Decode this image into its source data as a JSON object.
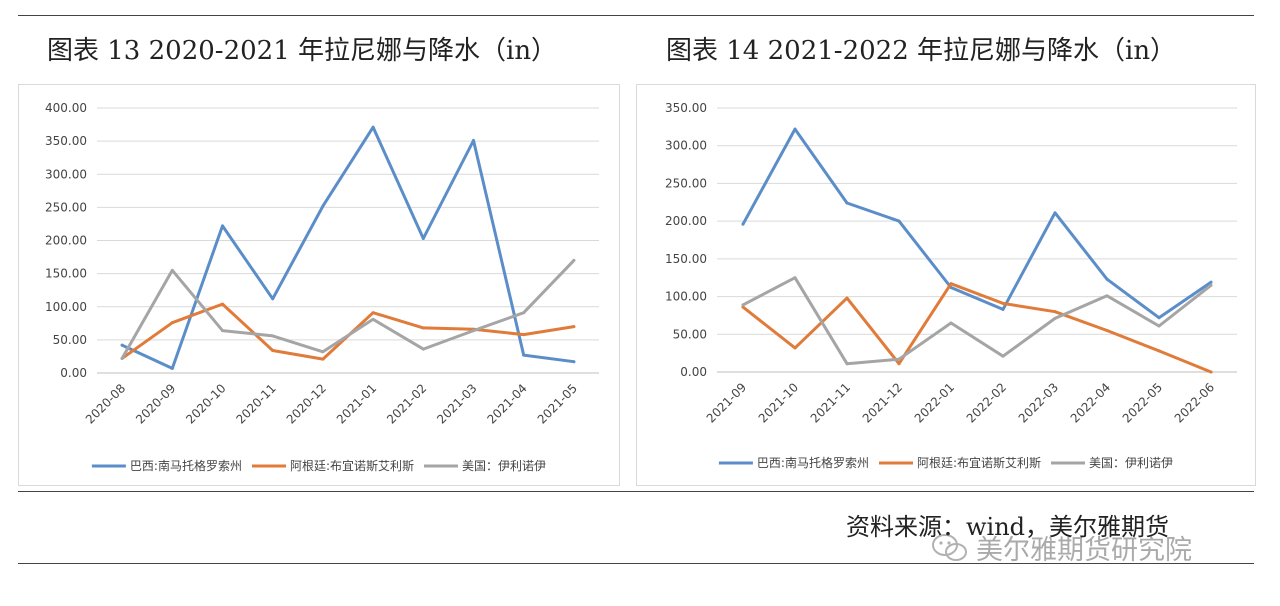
{
  "left": {
    "figure_title": "图表 13 2020-2021 年拉尼娜与降水（in）",
    "chart_data": {
      "type": "line",
      "categories": [
        "2020-08",
        "2020-09",
        "2020-10",
        "2020-11",
        "2020-12",
        "2021-01",
        "2021-02",
        "2021-03",
        "2021-04",
        "2021-05"
      ],
      "ylim": [
        0,
        400
      ],
      "yticks": [
        "0.00",
        "50.00",
        "100.00",
        "150.00",
        "200.00",
        "250.00",
        "300.00",
        "350.00",
        "400.00"
      ],
      "grid": "horizontal",
      "legend_position": "bottom",
      "series": [
        {
          "name": "巴西:南马托格罗索州",
          "color": "#5b8ec9",
          "values": [
            42,
            7,
            222,
            112,
            252,
            371,
            203,
            351,
            27,
            17
          ]
        },
        {
          "name": "阿根廷:布宜诺斯艾利斯",
          "color": "#e07b39",
          "values": [
            22,
            76,
            104,
            34,
            21,
            91,
            68,
            66,
            58,
            70
          ]
        },
        {
          "name": "美国：伊利诺伊",
          "color": "#a5a5a5",
          "values": [
            22,
            155,
            64,
            56,
            32,
            81,
            36,
            64,
            91,
            170
          ]
        }
      ]
    }
  },
  "right": {
    "figure_title": "图表 14 2021-2022 年拉尼娜与降水（in）",
    "chart_data": {
      "type": "line",
      "categories": [
        "2021-09",
        "2021-10",
        "2021-11",
        "2021-12",
        "2022-01",
        "2022-02",
        "2022-03",
        "2022-04",
        "2022-05",
        "2022-06"
      ],
      "ylim": [
        0,
        350
      ],
      "yticks": [
        "0.00",
        "50.00",
        "100.00",
        "150.00",
        "200.00",
        "250.00",
        "300.00",
        "350.00"
      ],
      "grid": "horizontal",
      "legend_position": "bottom",
      "series": [
        {
          "name": "巴西:南马托格罗索州",
          "color": "#5b8ec9",
          "values": [
            196,
            322,
            224,
            200,
            112,
            83,
            211,
            123,
            72,
            119
          ]
        },
        {
          "name": "阿根廷:布宜诺斯艾利斯",
          "color": "#e07b39",
          "values": [
            86,
            32,
            98,
            11,
            117,
            91,
            80,
            55,
            28,
            0
          ]
        },
        {
          "name": "美国：伊利诺伊",
          "color": "#a5a5a5",
          "values": [
            89,
            125,
            11,
            17,
            65,
            21,
            71,
            101,
            61,
            115
          ]
        }
      ]
    }
  },
  "footer": {
    "source": "资料来源：wind，美尔雅期货",
    "watermark": "美尔雅期货研究院"
  }
}
